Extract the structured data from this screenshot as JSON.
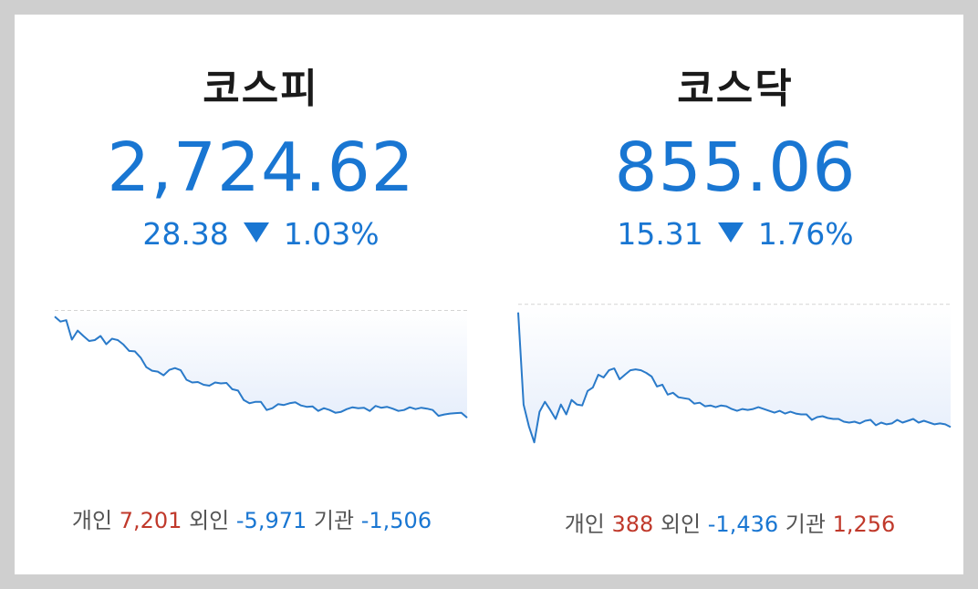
{
  "kospi": {
    "name": "코스피",
    "value": "2,724.62",
    "change": "28.38",
    "direction": "down",
    "pct": "1.03%",
    "investors": {
      "individual_label": "개인",
      "individual": "7,201",
      "foreign_label": "외인",
      "foreign": "-5,971",
      "institution_label": "기관",
      "institution": "-1,506"
    }
  },
  "kosdaq": {
    "name": "코스닥",
    "value": "855.06",
    "change": "15.31",
    "direction": "down",
    "pct": "1.76%",
    "investors": {
      "individual_label": "개인",
      "individual": "388",
      "foreign_label": "외인",
      "foreign": "-1,436",
      "institution_label": "기관",
      "institution": "1,256"
    }
  },
  "colors": {
    "up": "#c0392b",
    "down": "#1976d2",
    "line": "#2a7ac9",
    "baseline": "#aaaaaa"
  },
  "chart_data": [
    {
      "type": "area",
      "title": "",
      "reference_value": 2753.0,
      "ylim": [
        2718,
        2756
      ],
      "values": [
        2751.7,
        2750.6,
        2750.9,
        2746.6,
        2748.6,
        2747.4,
        2746.3,
        2746.5,
        2747.4,
        2745.6,
        2746.8,
        2746.5,
        2745.5,
        2744.1,
        2744.0,
        2742.6,
        2740.5,
        2739.7,
        2739.5,
        2738.7,
        2739.9,
        2740.3,
        2739.8,
        2737.7,
        2737.1,
        2737.2,
        2736.6,
        2736.4,
        2737.1,
        2736.9,
        2737.0,
        2735.6,
        2735.3,
        2733.2,
        2732.5,
        2732.8,
        2732.8,
        2731.0,
        2731.4,
        2732.3,
        2732.1,
        2732.5,
        2732.7,
        2732.0,
        2731.7,
        2731.8,
        2730.8,
        2731.4,
        2731.0,
        2730.4,
        2730.6,
        2731.2,
        2731.6,
        2731.4,
        2731.5,
        2730.8,
        2731.9,
        2731.5,
        2731.7,
        2731.3,
        2730.8,
        2731.0,
        2731.6,
        2731.2,
        2731.5,
        2731.3,
        2731.0,
        2729.7,
        2730.0,
        2730.2,
        2730.3,
        2730.4,
        2729.3
      ]
    },
    {
      "type": "area",
      "title": "",
      "reference_value": 870.37,
      "ylim": [
        853,
        872
      ],
      "values": [
        869.5,
        859.3,
        856.9,
        855.1,
        858.5,
        859.6,
        858.7,
        857.7,
        859.3,
        858.2,
        859.8,
        859.3,
        859.2,
        860.8,
        861.2,
        862.6,
        862.3,
        863.1,
        863.3,
        862.1,
        862.6,
        863.1,
        863.2,
        863.1,
        862.8,
        862.4,
        861.3,
        861.5,
        860.4,
        860.6,
        860.1,
        860.0,
        859.9,
        859.4,
        859.5,
        859.1,
        859.2,
        859.0,
        859.2,
        859.1,
        858.8,
        858.6,
        858.8,
        858.7,
        858.8,
        859.0,
        858.8,
        858.6,
        858.4,
        858.6,
        858.3,
        858.5,
        858.3,
        858.2,
        858.2,
        857.6,
        857.9,
        858.0,
        857.8,
        857.7,
        857.7,
        857.4,
        857.3,
        857.4,
        857.2,
        857.5,
        857.6,
        857.0,
        857.3,
        857.1,
        857.2,
        857.6,
        857.3,
        857.5,
        857.7,
        857.3,
        857.5,
        857.3,
        857.1,
        857.2,
        857.1,
        856.8
      ]
    }
  ]
}
